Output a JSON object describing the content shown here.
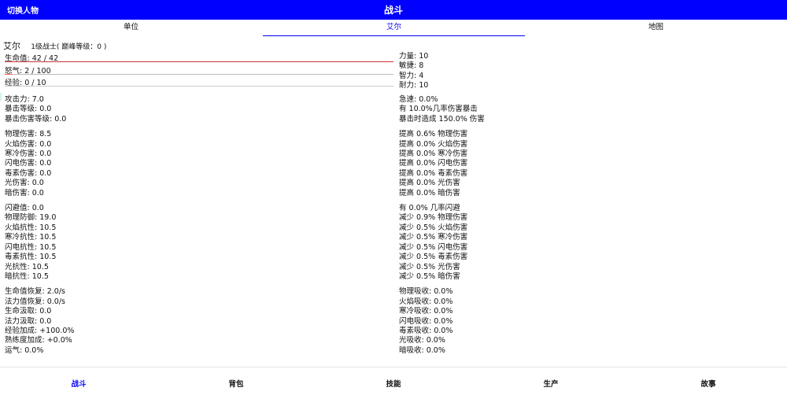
{
  "topbar": {
    "switch_label": "切换人物",
    "title": "战斗"
  },
  "tabs": [
    {
      "label": "单位",
      "active": false
    },
    {
      "label": "艾尔",
      "active": true
    },
    {
      "label": "地图",
      "active": false
    }
  ],
  "character": {
    "name": "艾尔",
    "level_text": "1级战士( 巅峰等级：0 )"
  },
  "bars": {
    "hp": {
      "label": "生命值: 42 / 42",
      "fraction": 1.0,
      "color": "#cc3333"
    },
    "rage": {
      "label": "怒气: 2 / 100",
      "fraction": 0.02,
      "color": "#ff6666"
    },
    "exp": {
      "label": "经验: 0 / 10",
      "fraction": 0.0,
      "color": "#cccccc"
    }
  },
  "attributes": [
    "力量: 10",
    "敏捷: 8",
    "智力: 4",
    "耐力: 10"
  ],
  "left_groups": [
    [
      "攻击力: 7.0",
      "暴击等级: 0.0",
      "暴击伤害等级: 0.0"
    ],
    [
      "物理伤害: 8.5",
      "火焰伤害: 0.0",
      "寒冷伤害: 0.0",
      "闪电伤害: 0.0",
      "毒素伤害: 0.0",
      "光伤害: 0.0",
      "暗伤害: 0.0"
    ],
    [
      "闪避值: 0.0",
      "物理防御: 19.0",
      "火焰抗性: 10.5",
      "寒冷抗性: 10.5",
      "闪电抗性: 10.5",
      "毒素抗性: 10.5",
      "光抗性: 10.5",
      "暗抗性: 10.5"
    ],
    [
      "生命值恢复: 2.0/s",
      "法力值恢复: 0.0/s",
      "生命汲取: 0.0",
      "法力汲取: 0.0",
      "经验加成: +100.0%",
      "熟练度加成: +0.0%",
      "运气: 0.0%"
    ]
  ],
  "right_groups": [
    [
      "急速: 0.0%",
      "有 10.0%几率伤害暴击",
      "暴击时造成 150.0% 伤害"
    ],
    [
      "提高 0.6% 物理伤害",
      "提高 0.0% 火焰伤害",
      "提高 0.0% 寒冷伤害",
      "提高 0.0% 闪电伤害",
      "提高 0.0% 毒素伤害",
      "提高 0.0% 光伤害",
      "提高 0.0% 暗伤害"
    ],
    [
      "有 0.0% 几率闪避",
      "减少 0.9% 物理伤害",
      "减少 0.5% 火焰伤害",
      "减少 0.5% 寒冷伤害",
      "减少 0.5% 闪电伤害",
      "减少 0.5% 毒素伤害",
      "减少 0.5% 光伤害",
      "减少 0.5% 暗伤害"
    ],
    [
      "物理吸收: 0.0%",
      "火焰吸收: 0.0%",
      "寒冷吸收: 0.0%",
      "闪电吸收: 0.0%",
      "毒素吸收: 0.0%",
      "光吸收: 0.0%",
      "暗吸收: 0.0%"
    ]
  ],
  "bottom_nav": [
    {
      "label": "战斗",
      "active": true
    },
    {
      "label": "背包",
      "active": false
    },
    {
      "label": "技能",
      "active": false
    },
    {
      "label": "生产",
      "active": false
    },
    {
      "label": "故事",
      "active": false
    }
  ]
}
